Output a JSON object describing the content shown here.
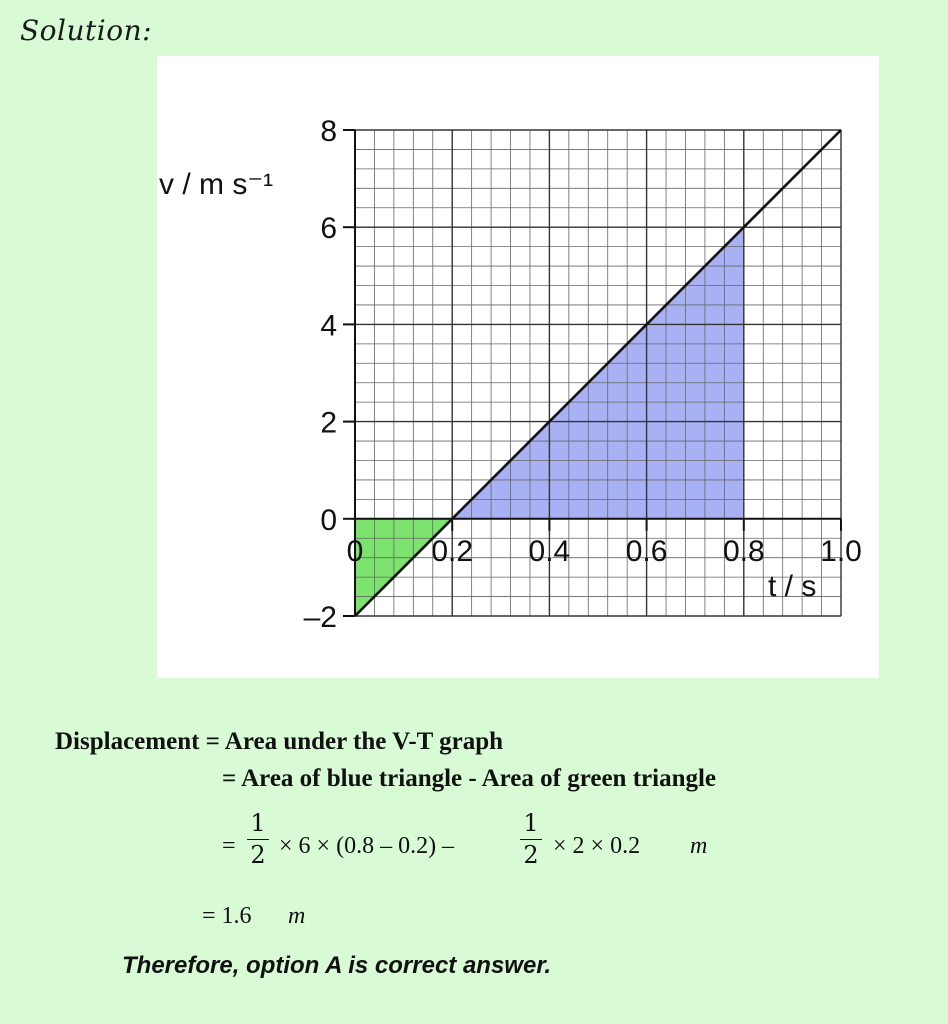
{
  "heading": "Solution:",
  "chart_data": {
    "type": "line",
    "x": [
      0,
      0.2,
      0.4,
      0.6,
      0.8,
      1.0
    ],
    "y": [
      -2,
      0,
      2,
      4,
      6,
      8
    ],
    "xlim": [
      0,
      1.0
    ],
    "ylim": [
      -2,
      8
    ],
    "x_ticks": [
      0,
      0.2,
      0.4,
      0.6,
      0.8,
      1.0
    ],
    "x_tick_labels": [
      "0",
      "0.2",
      "0.4",
      "0.6",
      "0.8",
      "1.0"
    ],
    "y_ticks": [
      -2,
      0,
      2,
      4,
      6,
      8
    ],
    "y_tick_labels": [
      "–2",
      "0",
      "2",
      "4",
      "6",
      "8"
    ],
    "xlabel": "t / s",
    "ylabel": "v / m s⁻¹",
    "grid": true,
    "shaded_regions": [
      {
        "color": "#7de36f",
        "points": [
          [
            0,
            0
          ],
          [
            0.2,
            0
          ],
          [
            0,
            -2
          ]
        ]
      },
      {
        "color": "#a9b1f5",
        "points": [
          [
            0.2,
            0
          ],
          [
            0.8,
            0
          ],
          [
            0.8,
            6
          ]
        ]
      }
    ]
  },
  "solution": {
    "line1": "Displacement = Area under the V-T graph",
    "line2": "=  Area of blue triangle - Area of green triangle",
    "line3": {
      "eq": "=",
      "frac1_num": "1",
      "frac1_den": "2",
      "part1": "× 6 × (0.8 – 0.2) –",
      "frac2_num": "1",
      "frac2_den": "2",
      "part2": "× 2 × 0.2",
      "unit": "m"
    },
    "line4_value": "= 1.6",
    "line4_unit": "m",
    "conclusion": "Therefore, option A is correct answer."
  }
}
